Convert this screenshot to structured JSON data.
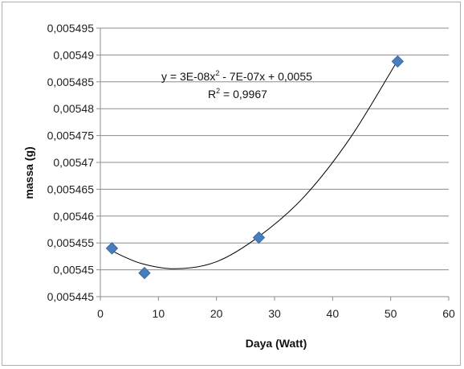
{
  "chart_data": {
    "type": "scatter",
    "xlabel": "Daya (Watt)",
    "ylabel": "massa (g)",
    "xlim": [
      0,
      60
    ],
    "ylim": [
      0.005445,
      0.005495
    ],
    "x_ticks": [
      0,
      10,
      20,
      30,
      40,
      50,
      60
    ],
    "x_tick_labels": [
      "0",
      "10",
      "20",
      "30",
      "40",
      "50",
      "60"
    ],
    "y_ticks": [
      0.005445,
      0.00545,
      0.005455,
      0.00546,
      0.005465,
      0.00547,
      0.005475,
      0.00548,
      0.005485,
      0.00549,
      0.005495
    ],
    "y_tick_labels": [
      "0,005445",
      "0,00545",
      "0,005455",
      "0,00546",
      "0,005465",
      "0,00547",
      "0,005475",
      "0,00548",
      "0,005485",
      "0,00549",
      "0,005495"
    ],
    "grid": true,
    "legend": false,
    "series": [
      {
        "marker": "diamond",
        "color": "#4a7ebb",
        "points": [
          {
            "x": 2,
            "y": 0.005454
          },
          {
            "x": 7.6,
            "y": 0.0054494
          },
          {
            "x": 27.3,
            "y": 0.005456
          },
          {
            "x": 51.2,
            "y": 0.0054888
          }
        ]
      }
    ],
    "trendline": {
      "type": "polynomial-2",
      "color": "#000000",
      "x_range": [
        2,
        51.2
      ],
      "curve_points": [
        {
          "x": 2,
          "y": 0.0054535
        },
        {
          "x": 7,
          "y": 0.0054512
        },
        {
          "x": 13,
          "y": 0.0054502
        },
        {
          "x": 20,
          "y": 0.0054515
        },
        {
          "x": 27.3,
          "y": 0.0054562
        },
        {
          "x": 35,
          "y": 0.0054635
        },
        {
          "x": 43,
          "y": 0.0054745
        },
        {
          "x": 51.2,
          "y": 0.005489
        }
      ]
    },
    "annotations": {
      "equation_base": "y = 3E-08x",
      "equation_sup1": "2",
      "equation_rest": " - 7E-07x + 0,0055",
      "r2_base": "R",
      "r2_sup": "2",
      "r2_rest": " = 0,9967"
    }
  }
}
